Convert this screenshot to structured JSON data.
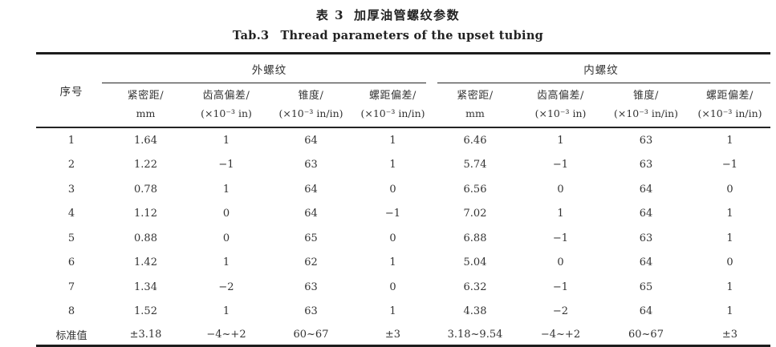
{
  "caption": {
    "cn_label": "表 3",
    "cn_title": "加厚油管螺纹参数",
    "en_label": "Tab.3",
    "en_title": "Thread parameters of the upset tubing"
  },
  "table": {
    "row_header": "序号",
    "groups": [
      {
        "label": "外螺纹",
        "columns": [
          {
            "name": "紧密距/",
            "unit": "mm"
          },
          {
            "name": "齿高偏差/",
            "unit": "(×10⁻³ in)"
          },
          {
            "name": "锥度/",
            "unit": "(×10⁻³ in/in)"
          },
          {
            "name": "螺距偏差/",
            "unit": "(×10⁻³ in/in)"
          }
        ]
      },
      {
        "label": "内螺纹",
        "columns": [
          {
            "name": "紧密距/",
            "unit": "mm"
          },
          {
            "name": "齿高偏差/",
            "unit": "(×10⁻³ in)"
          },
          {
            "name": "锥度/",
            "unit": "(×10⁻³ in/in)"
          },
          {
            "name": "螺距偏差/",
            "unit": "(×10⁻³ in/in)"
          }
        ]
      }
    ],
    "rows": [
      {
        "no": "1",
        "ext": [
          "1.64",
          "1",
          "64",
          "1"
        ],
        "int": [
          "6.46",
          "1",
          "63",
          "1"
        ]
      },
      {
        "no": "2",
        "ext": [
          "1.22",
          "−1",
          "63",
          "1"
        ],
        "int": [
          "5.74",
          "−1",
          "63",
          "−1"
        ]
      },
      {
        "no": "3",
        "ext": [
          "0.78",
          "1",
          "64",
          "0"
        ],
        "int": [
          "6.56",
          "0",
          "64",
          "0"
        ]
      },
      {
        "no": "4",
        "ext": [
          "1.12",
          "0",
          "64",
          "−1"
        ],
        "int": [
          "7.02",
          "1",
          "64",
          "1"
        ]
      },
      {
        "no": "5",
        "ext": [
          "0.88",
          "0",
          "65",
          "0"
        ],
        "int": [
          "6.88",
          "−1",
          "63",
          "1"
        ]
      },
      {
        "no": "6",
        "ext": [
          "1.42",
          "1",
          "62",
          "1"
        ],
        "int": [
          "5.04",
          "0",
          "64",
          "0"
        ]
      },
      {
        "no": "7",
        "ext": [
          "1.34",
          "−2",
          "63",
          "0"
        ],
        "int": [
          "6.32",
          "−1",
          "65",
          "1"
        ]
      },
      {
        "no": "8",
        "ext": [
          "1.52",
          "1",
          "63",
          "1"
        ],
        "int": [
          "4.38",
          "−2",
          "64",
          "1"
        ]
      }
    ],
    "standard_row": {
      "no": "标准值",
      "ext": [
        "±3.18",
        "−4~+2",
        "60~67",
        "±3"
      ],
      "int": [
        "3.18~9.54",
        "−4~+2",
        "60~67",
        "±3"
      ]
    }
  }
}
